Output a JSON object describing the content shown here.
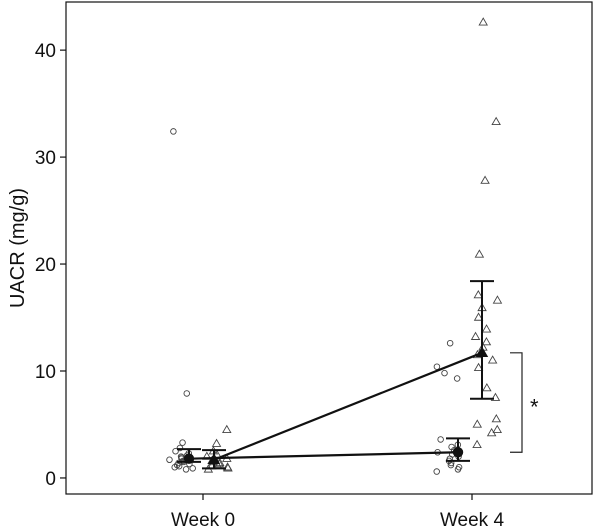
{
  "chart_data": {
    "type": "scatter",
    "ylabel": "UACR (mg/g)",
    "xlabel": "",
    "categories": [
      "Week 0",
      "Week 4"
    ],
    "ylim": [
      -1.5,
      44.5
    ],
    "yticks": [
      0,
      10,
      20,
      30,
      40
    ],
    "grid": false,
    "legend": "none",
    "series": [
      {
        "marker": "circle",
        "filled_mean_marker": "circle",
        "individual": {
          "Week 0": [
            32.4,
            7.9,
            3.3,
            2.8,
            2.5,
            2.3,
            2.1,
            2.0,
            1.9,
            1.8,
            1.7,
            1.6,
            1.5,
            1.4,
            1.3,
            1.2,
            1.1,
            1.0,
            0.9,
            0.8
          ],
          "Week 4": [
            12.6,
            10.4,
            9.8,
            9.3,
            3.6,
            3.1,
            2.9,
            2.6,
            2.4,
            2.2,
            2.0,
            1.8,
            1.6,
            1.4,
            1.2,
            1.0,
            0.8,
            0.6
          ]
        },
        "mean": [
          1.8,
          2.4
        ],
        "error": [
          [
            1.5,
            2.7
          ],
          [
            1.6,
            3.7
          ]
        ]
      },
      {
        "marker": "triangle",
        "filled_mean_marker": "triangle",
        "individual": {
          "Week 0": [
            4.5,
            3.2,
            2.5,
            2.2,
            2.0,
            1.8,
            1.6,
            1.5,
            1.4,
            1.3,
            1.2,
            1.1,
            1.0,
            0.9,
            0.8
          ],
          "Week 4": [
            42.6,
            33.3,
            27.8,
            20.9,
            17.1,
            16.6,
            15.9,
            15.0,
            13.9,
            13.2,
            12.7,
            12.2,
            11.5,
            11.0,
            10.3,
            8.4,
            7.5,
            5.5,
            5.0,
            4.5,
            4.2,
            3.1
          ]
        },
        "mean": [
          1.7,
          11.7
        ],
        "error": [
          [
            0.9,
            2.6
          ],
          [
            7.4,
            18.4
          ]
        ]
      }
    ],
    "annotation": {
      "text": "*",
      "bracket_between": [
        2.4,
        11.7
      ]
    }
  }
}
